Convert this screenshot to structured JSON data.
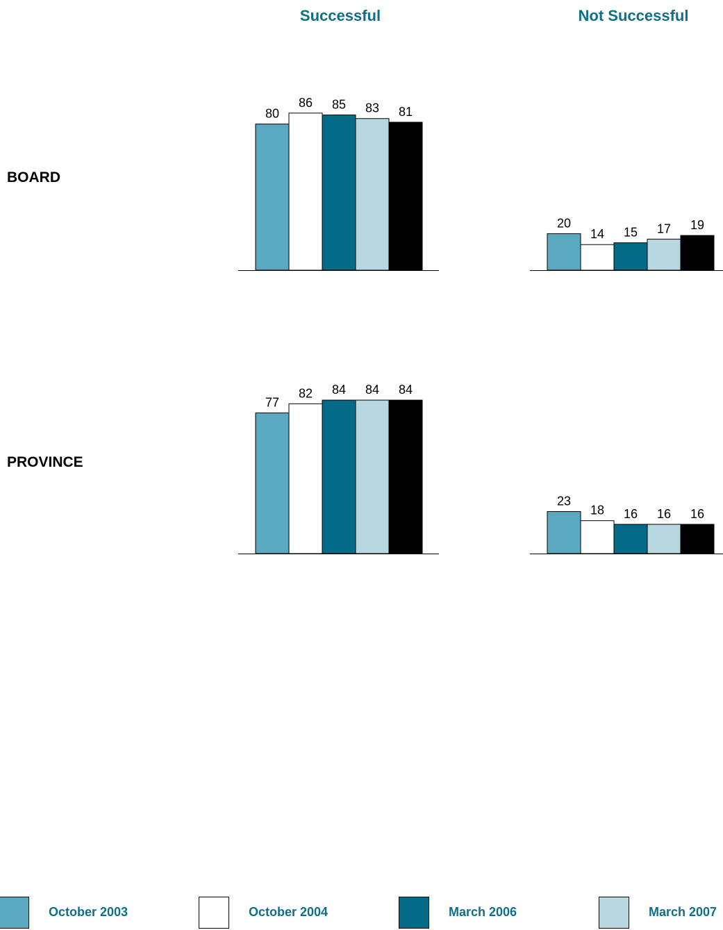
{
  "column_headers": [
    "Successful",
    "Not Successful"
  ],
  "row_labels": [
    "BOARD",
    "PROVINCE"
  ],
  "legend": [
    {
      "label": "October 2003",
      "color": "#5ba9c1"
    },
    {
      "label": "October 2004",
      "color": "#ffffff"
    },
    {
      "label": "March 2006",
      "color": "#036a88"
    },
    {
      "label": "March 2007",
      "color": "#b9d7e1"
    },
    {
      "label": "",
      "color": "#000000"
    }
  ],
  "chart_data": [
    {
      "type": "bar",
      "group": "BOARD",
      "panel": "Successful",
      "values": [
        80,
        86,
        85,
        83,
        81
      ]
    },
    {
      "type": "bar",
      "group": "BOARD",
      "panel": "Not Successful",
      "values": [
        20,
        14,
        15,
        17,
        19
      ]
    },
    {
      "type": "bar",
      "group": "PROVINCE",
      "panel": "Successful",
      "values": [
        77,
        82,
        84,
        84,
        84
      ]
    },
    {
      "type": "bar",
      "group": "PROVINCE",
      "panel": "Not Successful",
      "values": [
        23,
        18,
        16,
        16,
        16
      ]
    }
  ]
}
